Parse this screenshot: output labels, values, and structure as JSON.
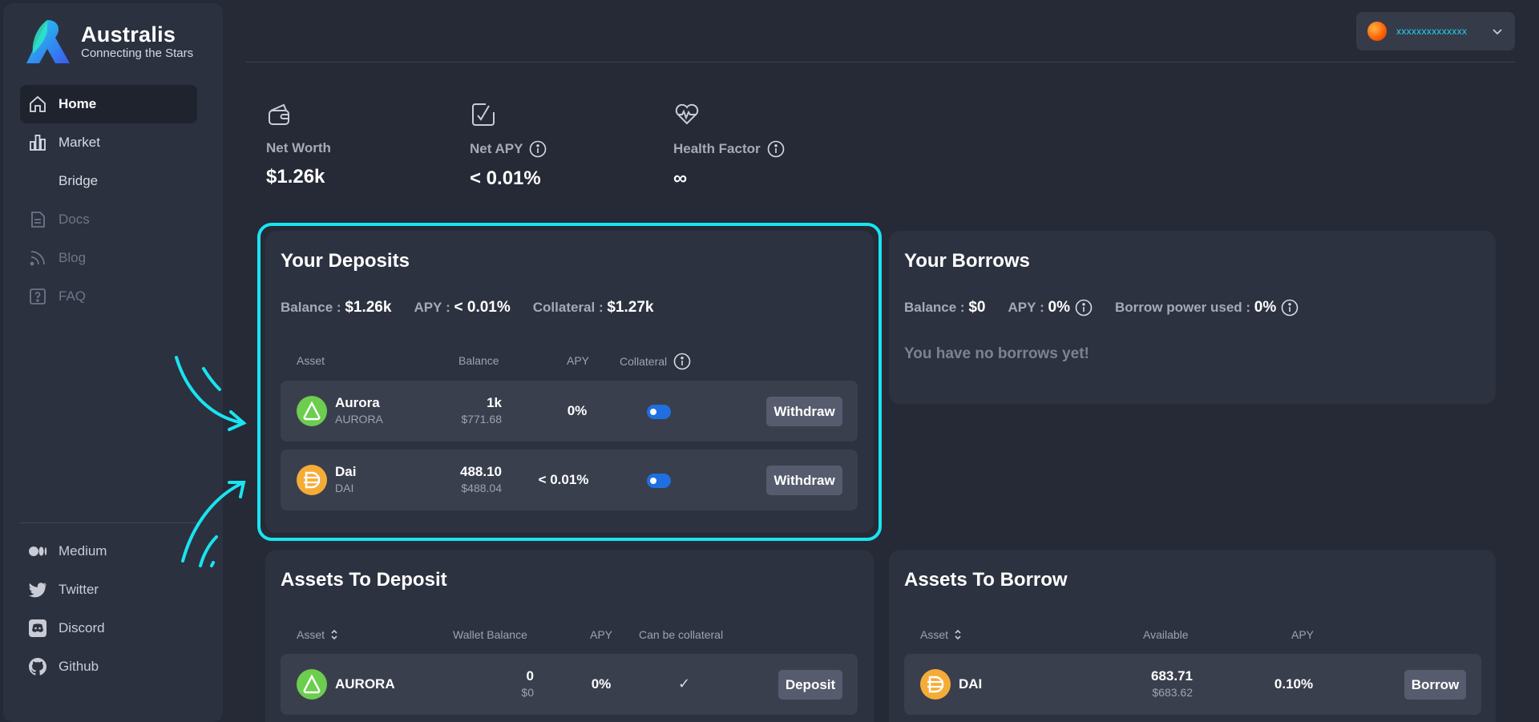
{
  "brand": {
    "name": "Australis",
    "tagline": "Connecting the Stars"
  },
  "nav": [
    {
      "label": "Home",
      "icon": "home-icon",
      "state": "active"
    },
    {
      "label": "Market",
      "icon": "bar-chart-icon",
      "state": "normal"
    },
    {
      "label": "Bridge",
      "icon": "",
      "state": "normal"
    },
    {
      "label": "Docs",
      "icon": "document-icon",
      "state": "disabled"
    },
    {
      "label": "Blog",
      "icon": "rss-icon",
      "state": "disabled"
    },
    {
      "label": "FAQ",
      "icon": "question-icon",
      "state": "disabled"
    }
  ],
  "social": [
    {
      "label": "Medium",
      "icon": "medium-icon"
    },
    {
      "label": "Twitter",
      "icon": "twitter-icon"
    },
    {
      "label": "Discord",
      "icon": "discord-icon"
    },
    {
      "label": "Github",
      "icon": "github-icon"
    }
  ],
  "account": {
    "address": "xxxxxxxxxxxxxx"
  },
  "stats": {
    "net_worth": {
      "label": "Net Worth",
      "value": "$1.26k"
    },
    "net_apy": {
      "label": "Net APY",
      "value": "< 0.01%"
    },
    "health_factor": {
      "label": "Health Factor",
      "value": "∞"
    }
  },
  "deposits": {
    "title": "Your Deposits",
    "balance_label": "Balance",
    "balance_value": "$1.26k",
    "apy_label": "APY",
    "apy_value": "< 0.01%",
    "collateral_label": "Collateral",
    "collateral_value": "$1.27k",
    "columns": {
      "asset": "Asset",
      "balance": "Balance",
      "apy": "APY",
      "collateral": "Collateral"
    },
    "rows": [
      {
        "name": "Aurora",
        "symbol": "AURORA",
        "balance": "1k",
        "balance_usd": "$771.68",
        "apy": "0%",
        "collateral_on": true,
        "action": "Withdraw"
      },
      {
        "name": "Dai",
        "symbol": "DAI",
        "balance": "488.10",
        "balance_usd": "$488.04",
        "apy": "< 0.01%",
        "collateral_on": true,
        "action": "Withdraw"
      }
    ]
  },
  "borrows": {
    "title": "Your Borrows",
    "balance_label": "Balance",
    "balance_value": "$0",
    "apy_label": "APY",
    "apy_value": "0%",
    "power_label": "Borrow power used",
    "power_value": "0%",
    "empty": "You have no borrows yet!"
  },
  "assets_deposit": {
    "title": "Assets To Deposit",
    "columns": {
      "asset": "Asset",
      "wallet_balance": "Wallet Balance",
      "apy": "APY",
      "collateral": "Can be collateral"
    },
    "rows": [
      {
        "name": "AURORA",
        "balance": "0",
        "balance_usd": "$0",
        "apy": "0%",
        "can_collateral": "✓",
        "action": "Deposit"
      }
    ]
  },
  "assets_borrow": {
    "title": "Assets To Borrow",
    "columns": {
      "asset": "Asset",
      "available": "Available",
      "apy": "APY"
    },
    "rows": [
      {
        "name": "DAI",
        "available": "683.71",
        "available_usd": "$683.62",
        "apy": "0.10%",
        "action": "Borrow"
      }
    ]
  },
  "colors": {
    "accent": "#19e4f0",
    "toggle": "#1f6fe0",
    "aurora": "#6ccd4f",
    "dai": "#f5ac37"
  }
}
